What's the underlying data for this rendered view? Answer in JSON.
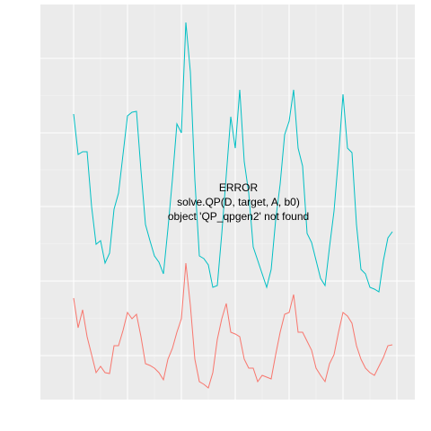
{
  "chart_data": {
    "type": "line",
    "annotations": [
      "ERROR",
      "solve.QP(D, target, A, b0)",
      "object 'QP_qpgen2' not found"
    ],
    "x": [
      0,
      1,
      2,
      3,
      4,
      5,
      6,
      7,
      8,
      9,
      10,
      11,
      12,
      13,
      14,
      15,
      16,
      17,
      18,
      19,
      20,
      21,
      22,
      23,
      24,
      25,
      26,
      27,
      28,
      29,
      30,
      31,
      32,
      33,
      34,
      35,
      36,
      37,
      38,
      39,
      40,
      41,
      42,
      43,
      44,
      45,
      46,
      47,
      48,
      49,
      50,
      51,
      52,
      53,
      54,
      55,
      56,
      57,
      58,
      59,
      60,
      61,
      62,
      63,
      64,
      65,
      66,
      67,
      68,
      69,
      70,
      71
    ],
    "series": [
      {
        "color": "#00BFC4",
        "values": [
          318,
          273,
          276,
          276,
          215,
          173,
          177,
          152,
          163,
          212,
          230,
          273,
          316,
          320,
          321,
          255,
          195,
          177,
          160,
          153,
          140,
          190,
          245,
          307,
          297,
          420,
          365,
          245,
          160,
          157,
          150,
          125,
          127,
          185,
          250,
          315,
          280,
          345,
          265,
          230,
          170,
          155,
          140,
          125,
          145,
          200,
          240,
          295,
          310,
          345,
          280,
          260,
          185,
          175,
          155,
          135,
          127,
          170,
          210,
          270,
          340,
          280,
          275,
          195,
          145,
          140,
          125,
          123,
          120,
          155,
          180,
          187
        ]
      },
      {
        "color": "#F8766D",
        "values": [
          113,
          80,
          100,
          70,
          50,
          30,
          37,
          30,
          29,
          60,
          60,
          77,
          97,
          90,
          95,
          70,
          40,
          38,
          35,
          30,
          22,
          45,
          57,
          75,
          90,
          152,
          105,
          45,
          20,
          17,
          13,
          30,
          67,
          90,
          107,
          75,
          73,
          70,
          45,
          35,
          35,
          20,
          27,
          25,
          23,
          50,
          75,
          95,
          97,
          117,
          75,
          75,
          65,
          55,
          35,
          27,
          20,
          40,
          50,
          75,
          97,
          93,
          85,
          60,
          45,
          35,
          30,
          27,
          37,
          47,
          60,
          61
        ]
      }
    ],
    "xlim": [
      -7.4,
      76
    ],
    "xticks": [
      0,
      12,
      24,
      36,
      48,
      60,
      72
    ],
    "ylim": [
      0,
      440
    ],
    "yticks": [
      49,
      132,
      215,
      297,
      380
    ],
    "grid": true
  }
}
